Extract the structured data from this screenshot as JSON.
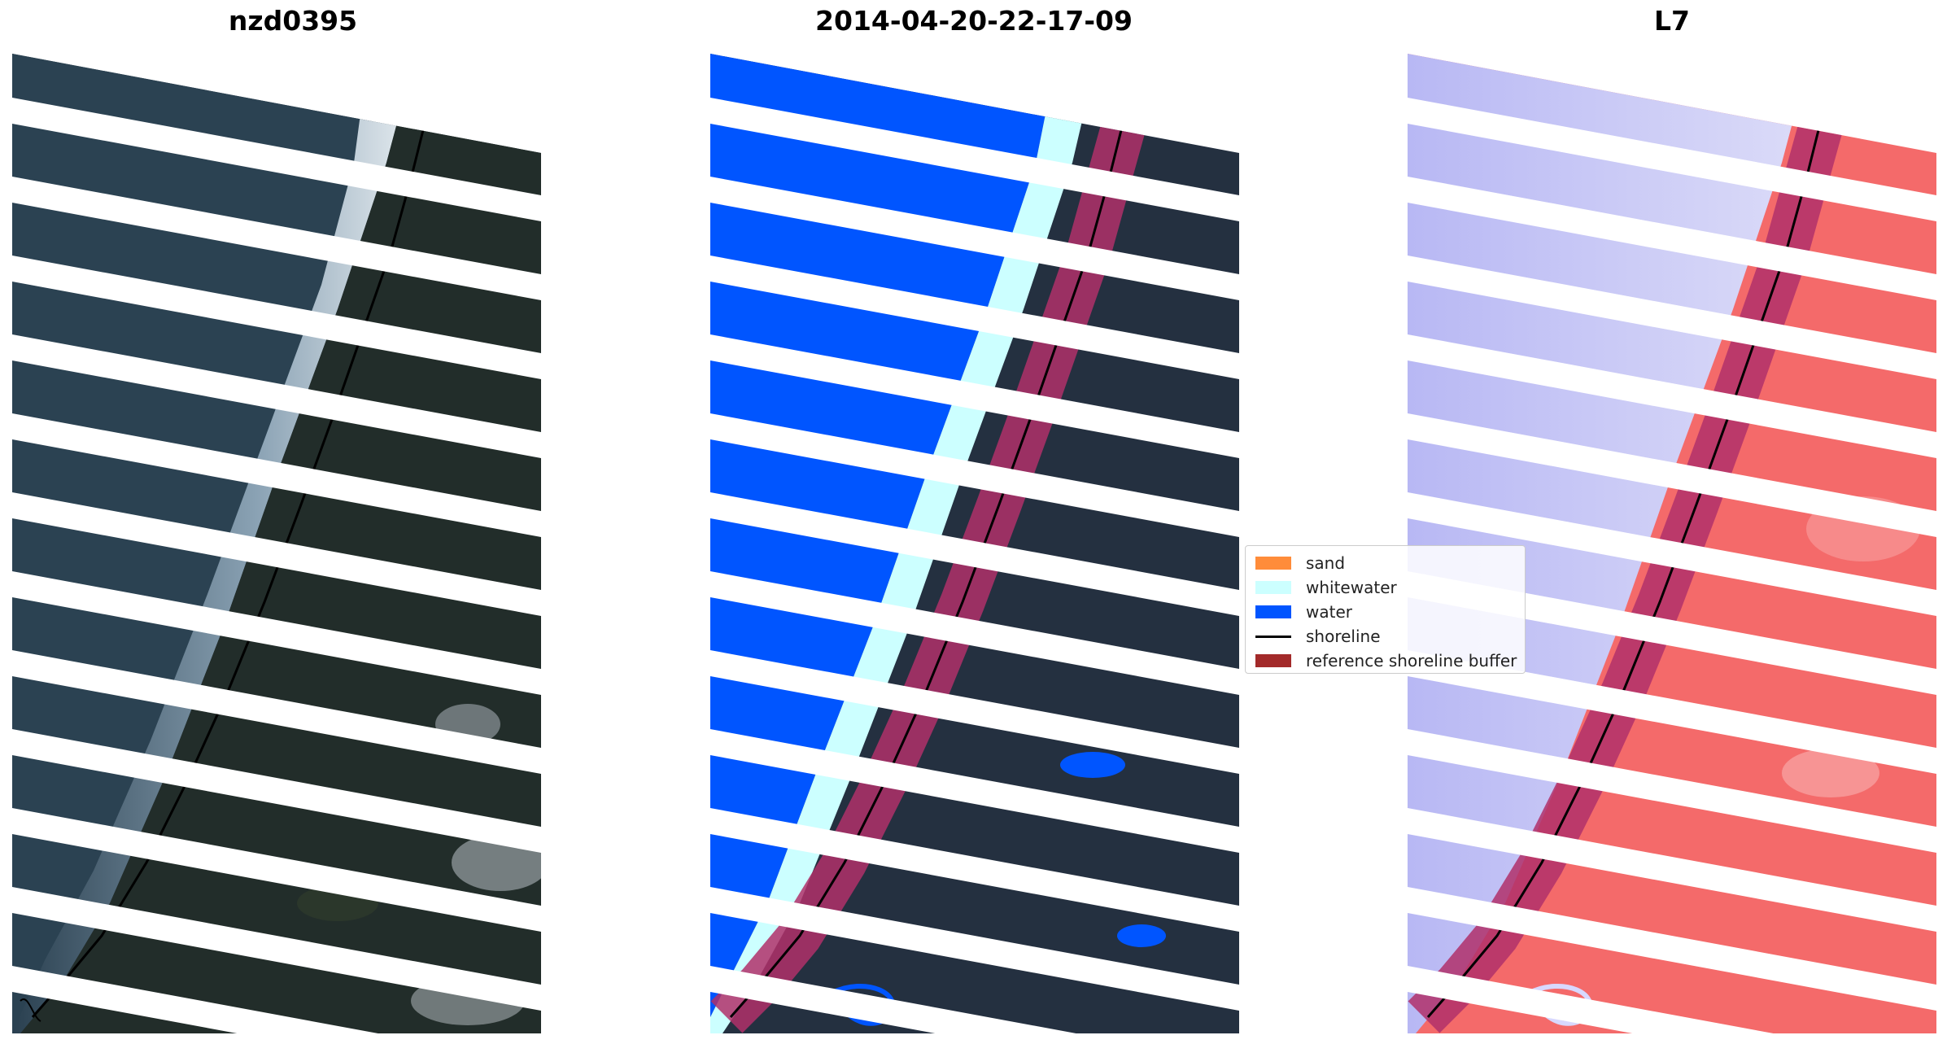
{
  "panels": [
    {
      "title": "nzd0395",
      "kind": "rgb"
    },
    {
      "title": "2014-04-20-22-17-09",
      "kind": "classified"
    },
    {
      "title": "L7",
      "kind": "index"
    }
  ],
  "legend": {
    "items": [
      {
        "label": "sand",
        "color": "#ff8c3a",
        "type": "patch"
      },
      {
        "label": "whitewater",
        "color": "#ccffff",
        "type": "patch"
      },
      {
        "label": "water",
        "color": "#0055ff",
        "type": "patch"
      },
      {
        "label": "shoreline",
        "color": "#000000",
        "type": "line"
      },
      {
        "label": "reference shoreline buffer",
        "color": "#a32a2a",
        "type": "patch"
      }
    ],
    "placement": "center-right of middle panel"
  },
  "colors": {
    "land": "#243040",
    "ocean": "#2a4050",
    "surf": "#d8e2ea",
    "water_class": "#0055ff",
    "whitewater_class": "#ccffff",
    "buffer": "#b0306a",
    "index_water": "#b8b8f4",
    "index_land": "#f46a6a",
    "shoreline": "#000000"
  }
}
